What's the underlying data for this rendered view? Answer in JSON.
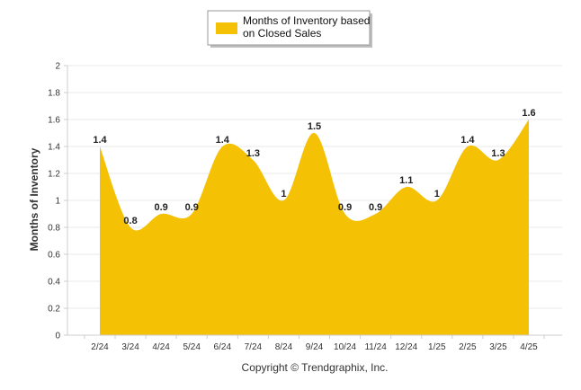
{
  "chart_data": {
    "type": "area",
    "categories": [
      "2/24",
      "3/24",
      "4/24",
      "5/24",
      "6/24",
      "7/24",
      "8/24",
      "9/24",
      "10/24",
      "11/24",
      "12/24",
      "1/25",
      "2/25",
      "3/25",
      "4/25"
    ],
    "series": [
      {
        "name": "Months of Inventory based on Closed Sales",
        "values": [
          1.4,
          0.8,
          0.9,
          0.9,
          1.4,
          1.3,
          1,
          1.5,
          0.9,
          0.9,
          1.1,
          1,
          1.4,
          1.3,
          1.6
        ],
        "labels": [
          "1.4",
          "0.8",
          "0.9",
          "0.9",
          "1.4",
          "1.3",
          "1",
          "1.5",
          "0.9",
          "0.9",
          "1.1",
          "1",
          "1.4",
          "1.3",
          "1.6"
        ],
        "color": "#F5C105"
      }
    ],
    "ylabel": "Months of Inventory",
    "xlabel": "",
    "ylim": [
      0,
      2
    ],
    "yticks": [
      "0",
      "0.2",
      "0.4",
      "0.6",
      "0.8",
      "1",
      "1.2",
      "1.4",
      "1.6",
      "1.8",
      "2"
    ],
    "grid": true,
    "legend": "top-center",
    "legend_label_lines": [
      "Months of Inventory based",
      "on Closed Sales"
    ]
  },
  "footer": {
    "copyright": "Copyright © Trendgraphix, Inc."
  },
  "colors": {
    "area": "#F5C105",
    "grid": "#E8E8E8",
    "axis": "#CCCCCC"
  }
}
